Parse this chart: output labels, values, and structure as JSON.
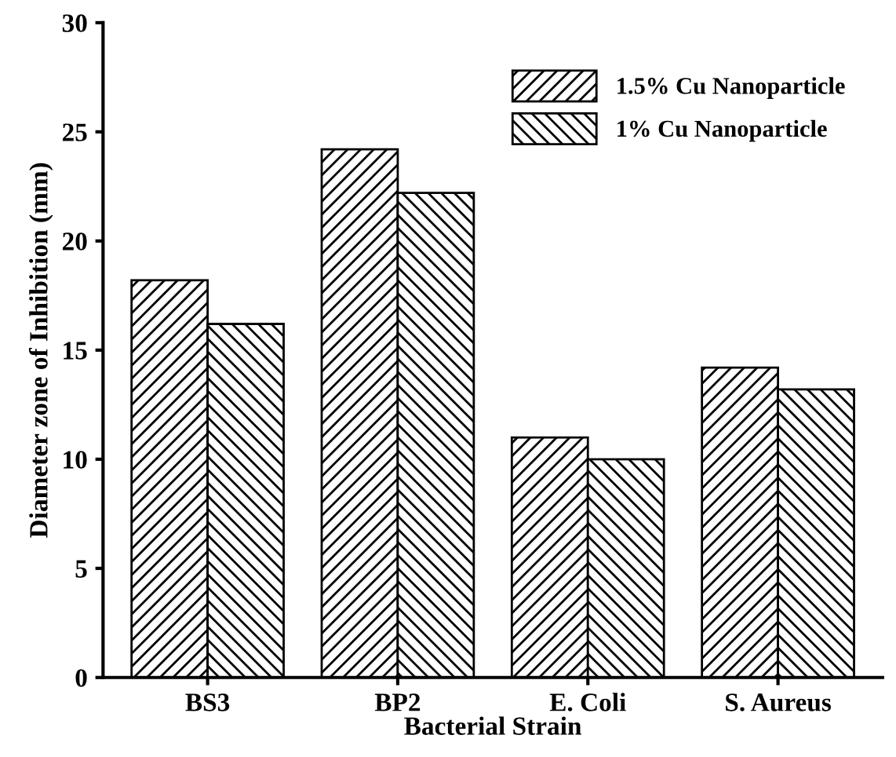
{
  "chart_data": {
    "type": "bar",
    "xlabel": "Bacterial Strain",
    "ylabel": "Diameter zone of Inhibition (mm)",
    "categories": [
      "BS3",
      "BP2",
      "E. Coli",
      "S. Aureus"
    ],
    "series": [
      {
        "name": "1.5% Cu Nanoparticle",
        "color": "#000000",
        "values": [
          18.2,
          24.2,
          11.0,
          14.2
        ]
      },
      {
        "name": "1% Cu Nanoparticle",
        "color": "#000000",
        "values": [
          16.2,
          22.2,
          10.0,
          13.2
        ]
      }
    ],
    "ylim": [
      0,
      30
    ],
    "yticks": [
      0,
      5,
      10,
      15,
      20,
      25,
      30
    ],
    "grid": false,
    "legend": "top right"
  }
}
